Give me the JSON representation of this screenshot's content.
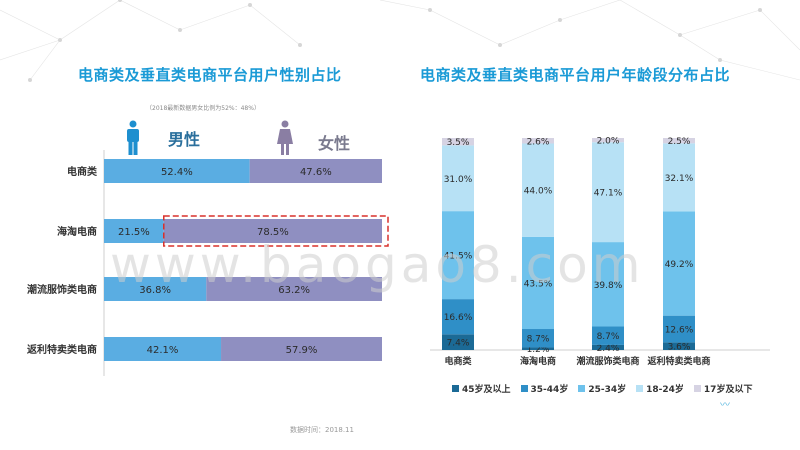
{
  "left_title": "电商类及垂直类电商平台用户性别占比",
  "right_title": "电商类及垂直类电商平台用户年龄段分布占比",
  "note": "（2018最新数据男女比例为52%：48%）",
  "gender_labels": {
    "male": "男性",
    "female": "女性"
  },
  "source": "数据时间：2018.11",
  "watermark": "www.baogao8.com",
  "corner_mark": "〰",
  "colors": {
    "male": "#5aade2",
    "female": "#8f8fc1",
    "highlight_border": "#d9302b",
    "title": "#1a9ad6",
    "age": [
      "#1b6a96",
      "#2f8fc7",
      "#6ec2ec",
      "#b7e1f5",
      "#d6d3e3"
    ]
  },
  "chart_data": [
    {
      "type": "bar",
      "orientation": "horizontal",
      "stacked": true,
      "title": "电商类及垂直类电商平台用户性别占比",
      "categories": [
        "电商类",
        "海淘电商",
        "潮流服饰类电商",
        "返利特卖类电商"
      ],
      "series": [
        {
          "name": "男性",
          "values": [
            52.4,
            21.5,
            36.8,
            42.1
          ],
          "labels": [
            "52.4%",
            "21.5%",
            "36.8%",
            "42.1%"
          ]
        },
        {
          "name": "女性",
          "values": [
            47.6,
            78.5,
            63.2,
            57.9
          ],
          "labels": [
            "47.6%",
            "78.5%",
            "63.2%",
            "57.9%"
          ]
        }
      ],
      "highlight": {
        "category": "海淘电商",
        "series": "女性"
      },
      "xlim": [
        0,
        100
      ]
    },
    {
      "type": "bar",
      "orientation": "vertical",
      "stacked": true,
      "title": "电商类及垂直类电商平台用户年龄段分布占比",
      "categories": [
        "电商类",
        "海淘电商",
        "潮流服饰类电商",
        "返利特卖类电商"
      ],
      "series": [
        {
          "name": "45岁及以上",
          "values": [
            7.4,
            1.2,
            2.4,
            3.6
          ],
          "labels": [
            "7.4%",
            "1.2%",
            "2.4%",
            "3.6%"
          ]
        },
        {
          "name": "35-44岁",
          "values": [
            16.6,
            8.7,
            8.7,
            12.6
          ],
          "labels": [
            "16.6%",
            "8.7%",
            "8.7%",
            "12.6%"
          ]
        },
        {
          "name": "25-34岁",
          "values": [
            41.5,
            43.5,
            39.8,
            49.2
          ],
          "labels": [
            "41.5%",
            "43.5%",
            "39.8%",
            "49.2%"
          ]
        },
        {
          "name": "18-24岁",
          "values": [
            31.0,
            44.0,
            47.1,
            32.1
          ],
          "labels": [
            "31.0%",
            "44.0%",
            "47.1%",
            "32.1%"
          ]
        },
        {
          "name": "17岁及以下",
          "values": [
            3.5,
            2.6,
            2.0,
            2.5
          ],
          "labels": [
            "3.5%",
            "2.6%",
            "2.0%",
            "2.5%"
          ]
        }
      ],
      "ylim": [
        0,
        100
      ],
      "legend": "bottom"
    }
  ]
}
